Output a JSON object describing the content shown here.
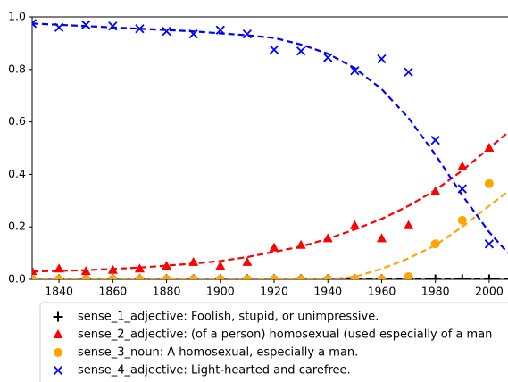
{
  "chart_data": {
    "type": "scatter",
    "x": [
      1830,
      1840,
      1850,
      1860,
      1870,
      1880,
      1890,
      1900,
      1910,
      1920,
      1930,
      1940,
      1950,
      1960,
      1970,
      1980,
      1990,
      2000
    ],
    "xlim": [
      1830,
      2007
    ],
    "xticks": [
      1840,
      1860,
      1880,
      1900,
      1920,
      1940,
      1960,
      1980,
      2000
    ],
    "ylim": [
      0,
      1
    ],
    "yticks": [
      {
        "value": 0,
        "label": "0.0"
      },
      {
        "value": 0.2,
        "label": "0.2"
      },
      {
        "value": 0.4,
        "label": "0.4"
      },
      {
        "value": 0.6,
        "label": "0.6"
      },
      {
        "value": 0.8,
        "label": "0.8"
      },
      {
        "value": 1,
        "label": "1.0"
      }
    ],
    "series": [
      {
        "name": "sense_1_adjective: Foolish, stupid, or unimpressive.",
        "color": "#000000",
        "marker": "plus",
        "values": [
          0,
          0,
          0,
          0,
          0,
          0,
          0,
          0,
          0,
          0,
          0,
          0,
          0,
          0,
          0,
          0,
          0,
          0
        ],
        "fit": {
          "x": [
            1830,
            2007
          ],
          "values": [
            0,
            0
          ]
        }
      },
      {
        "name": "sense_2_adjective: (of a person) homosexual (used especially of a man",
        "color": "#ff0000",
        "marker": "triangle",
        "values": [
          0.03,
          0.04,
          0.03,
          0.035,
          0.04,
          0.05,
          0.065,
          0.05,
          0.065,
          0.12,
          0.13,
          0.155,
          0.205,
          0.155,
          0.205,
          0.335,
          0.43,
          0.5
        ],
        "fit": {
          "x": [
            1830,
            1850,
            1870,
            1890,
            1900,
            1910,
            1920,
            1930,
            1940,
            1950,
            1960,
            1970,
            1980,
            1990,
            2000,
            2007
          ],
          "values": [
            0.03,
            0.035,
            0.045,
            0.06,
            0.07,
            0.085,
            0.105,
            0.125,
            0.155,
            0.19,
            0.23,
            0.28,
            0.34,
            0.415,
            0.5,
            0.56
          ]
        }
      },
      {
        "name": "sense_3_noun: A homosexual, especially a man.",
        "color": "#ffa500",
        "marker": "circle",
        "values": [
          0,
          0,
          0,
          0,
          0,
          0,
          0,
          0,
          0,
          0,
          0,
          0,
          0,
          0,
          0.01,
          0.135,
          0.225,
          0.365
        ],
        "fit": {
          "x": [
            1830,
            1940,
            1950,
            1960,
            1970,
            1980,
            1990,
            2000,
            2007
          ],
          "values": [
            0,
            0,
            0.01,
            0.04,
            0.08,
            0.13,
            0.2,
            0.28,
            0.335
          ]
        }
      },
      {
        "name": "sense_4_adjective: Light-hearted and carefree.",
        "color": "#0000ff",
        "marker": "x",
        "values": [
          0.975,
          0.96,
          0.97,
          0.965,
          0.955,
          0.945,
          0.935,
          0.95,
          0.935,
          0.875,
          0.87,
          0.845,
          0.795,
          0.84,
          0.79,
          0.53,
          0.345,
          0.135
        ],
        "fit": {
          "x": [
            1830,
            1850,
            1870,
            1890,
            1910,
            1920,
            1930,
            1940,
            1950,
            1960,
            1970,
            1980,
            1990,
            2000,
            2007
          ],
          "values": [
            0.975,
            0.965,
            0.955,
            0.945,
            0.93,
            0.92,
            0.895,
            0.86,
            0.805,
            0.725,
            0.615,
            0.475,
            0.32,
            0.18,
            0.1
          ]
        }
      }
    ]
  }
}
